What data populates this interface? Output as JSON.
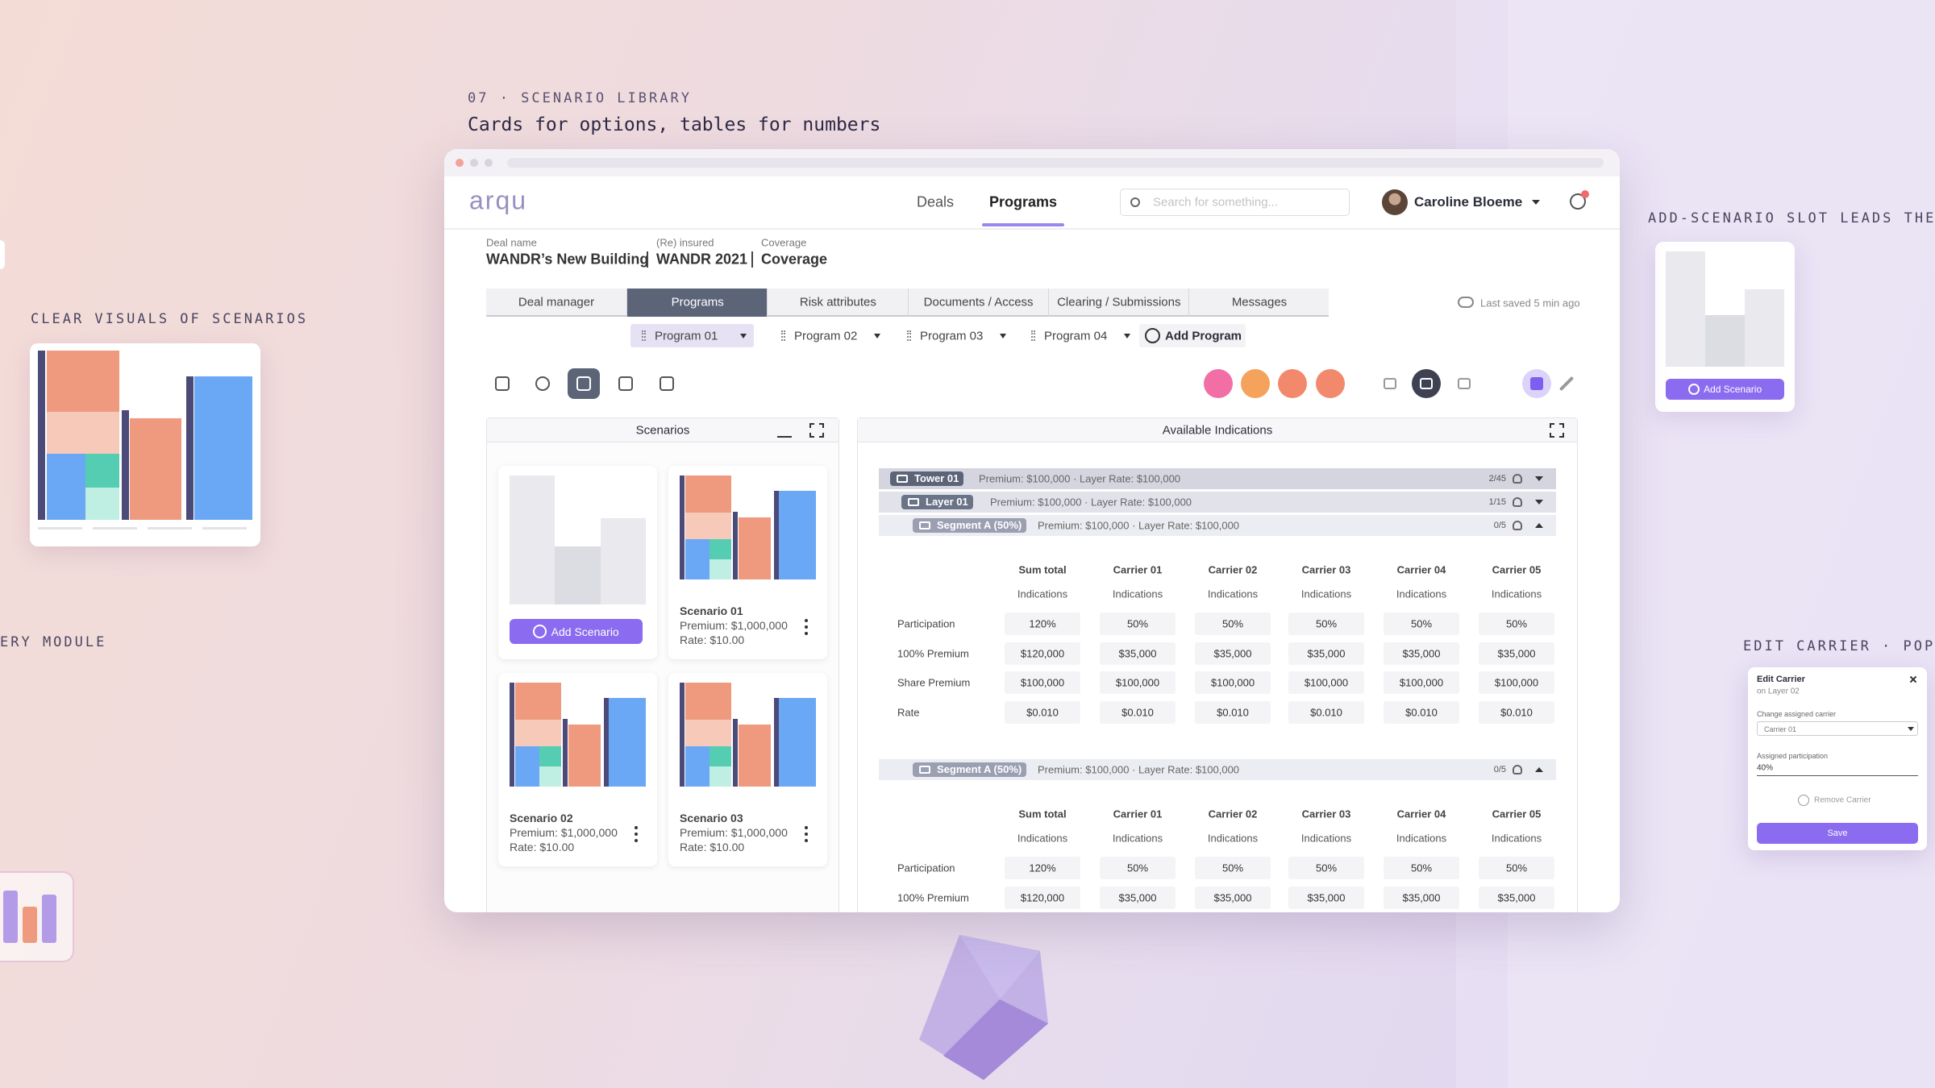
{
  "header": {
    "eyebrow": "07 · SCENARIO LIBRARY",
    "headline": "Cards for options, tables for numbers"
  },
  "callouts": [
    "CLEAR VISUALS OF SCENARIOS",
    "ERY MODULE",
    "ADD-SCENARIO SLOT LEADS THE",
    "EDIT CARRIER · POPO"
  ],
  "app": {
    "logo": "arqu",
    "nav": [
      "Deals",
      "Programs"
    ],
    "search_placeholder": "Search for something...",
    "user": "Caroline Bloeme",
    "deal": [
      {
        "label": "Deal name",
        "value": "WANDR’s New Building"
      },
      {
        "label": "(Re) insured",
        "value": "WANDR 2021"
      },
      {
        "label": "Coverage",
        "value": "Coverage"
      }
    ],
    "tabs": [
      "Deal manager",
      "Programs",
      "Risk attributes",
      "Documents / Access",
      "Clearing / Submissions",
      "Messages"
    ],
    "last_saved": "Last saved 5 min ago",
    "programs": [
      "Program 01",
      "Program 02",
      "Program 03",
      "Program 04"
    ],
    "add_program": "Add Program"
  },
  "scenarios": {
    "title": "Scenarios",
    "add": "Add Scenario",
    "cards": [
      {
        "name": "Scenario 01",
        "premium": "Premium: $1,000,000",
        "rate": "Rate: $10.00"
      },
      {
        "name": "Scenario 02",
        "premium": "Premium: $1,000,000",
        "rate": "Rate: $10.00"
      },
      {
        "name": "Scenario 03",
        "premium": "Premium: $1,000,000",
        "rate": "Rate: $10.00"
      }
    ]
  },
  "indications": {
    "title": "Available Indications",
    "tower": {
      "name": "Tower 01",
      "summary": "Premium: $100,000 · Layer Rate: $100,000",
      "count": "2/45"
    },
    "layer": {
      "name": "Layer 01",
      "summary": "Premium: $100,000 · Layer Rate: $100,000",
      "count": "1/15"
    },
    "columns": [
      "Sum total",
      "Carrier 01",
      "Carrier 02",
      "Carrier 03",
      "Carrier 04",
      "Carrier 05"
    ],
    "subheader": "Indications",
    "segments": [
      {
        "name": "Segment A (50%)",
        "summary": "Premium: $100,000 · Layer Rate: $100,000",
        "count": "0/5",
        "rows": [
          {
            "label": "Participation",
            "cells": [
              "120%",
              "50%",
              "50%",
              "50%",
              "50%",
              "50%"
            ]
          },
          {
            "label": "100% Premium",
            "cells": [
              "$120,000",
              "$35,000",
              "$35,000",
              "$35,000",
              "$35,000",
              "$35,000"
            ]
          },
          {
            "label": "Share Premium",
            "cells": [
              "$100,000",
              "$100,000",
              "$100,000",
              "$100,000",
              "$100,000",
              "$100,000"
            ]
          },
          {
            "label": "Rate",
            "cells": [
              "$0.010",
              "$0.010",
              "$0.010",
              "$0.010",
              "$0.010",
              "$0.010"
            ]
          }
        ]
      },
      {
        "name": "Segment A (50%)",
        "summary": "Premium: $100,000 · Layer Rate: $100,000",
        "count": "0/5",
        "rows": [
          {
            "label": "Participation",
            "cells": [
              "120%",
              "50%",
              "50%",
              "50%",
              "50%",
              "50%"
            ]
          },
          {
            "label": "100% Premium",
            "cells": [
              "$120,000",
              "$35,000",
              "$35,000",
              "$35,000",
              "$35,000",
              "$35,000"
            ]
          }
        ]
      }
    ]
  },
  "add_scenario_card": {
    "button": "Add Scenario"
  },
  "edit_carrier": {
    "title": "Edit Carrier",
    "subtitle": "on Layer 02",
    "carrier_label": "Change assigned carrier",
    "carrier_value": "Carrier 01",
    "participation_label": "Assigned participation",
    "participation_value": "40%",
    "remove": "Remove Carrier",
    "save": "Save"
  }
}
